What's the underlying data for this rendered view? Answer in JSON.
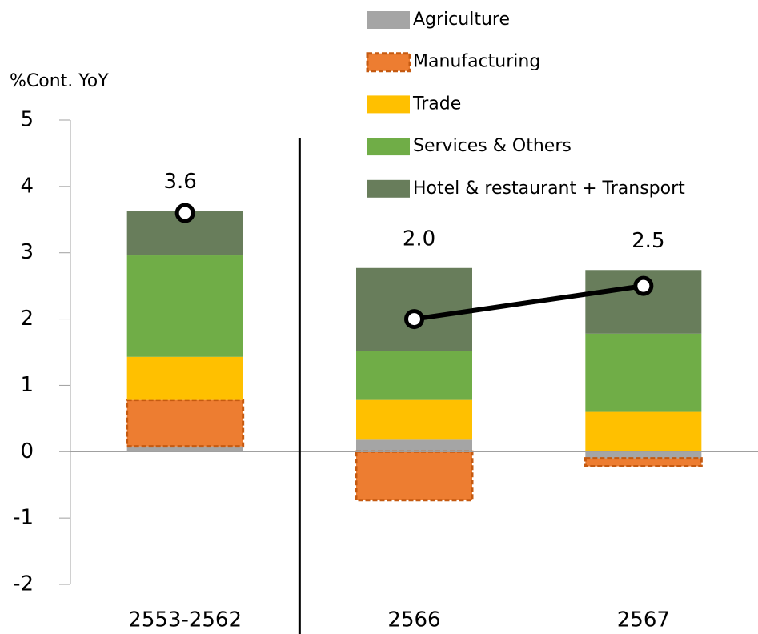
{
  "chart_data": {
    "type": "stacked-bar-line",
    "y_label": "%Cont. YoY",
    "categories": [
      "2553-2562",
      "2566",
      "2567"
    ],
    "series": [
      {
        "name": "Agriculture",
        "color": "#a5a5a5",
        "values": [
          0.08,
          0.18,
          -0.1
        ]
      },
      {
        "name": "Manufacturing",
        "color": "#ed7d31",
        "border": "#c55a11",
        "dashed": true,
        "values": [
          0.7,
          -0.73,
          -0.12
        ]
      },
      {
        "name": "Trade",
        "color": "#ffc000",
        "values": [
          0.65,
          0.6,
          0.6
        ]
      },
      {
        "name": "Services & Others",
        "color": "#70ad47",
        "values": [
          1.53,
          0.74,
          1.18
        ]
      },
      {
        "name": "Hotel & restaurant + Transport",
        "color": "#687d5b",
        "values": [
          0.67,
          1.25,
          0.96
        ]
      }
    ],
    "line": {
      "color": "#000000",
      "values": [
        3.6,
        2.0,
        2.5
      ],
      "value_labels": [
        "3.6",
        "2.0",
        "2.5"
      ]
    },
    "divider_after": 0,
    "ylim": [
      -2,
      5
    ],
    "yticks": [
      -2,
      -1,
      0,
      1,
      2,
      3,
      4,
      5
    ]
  }
}
